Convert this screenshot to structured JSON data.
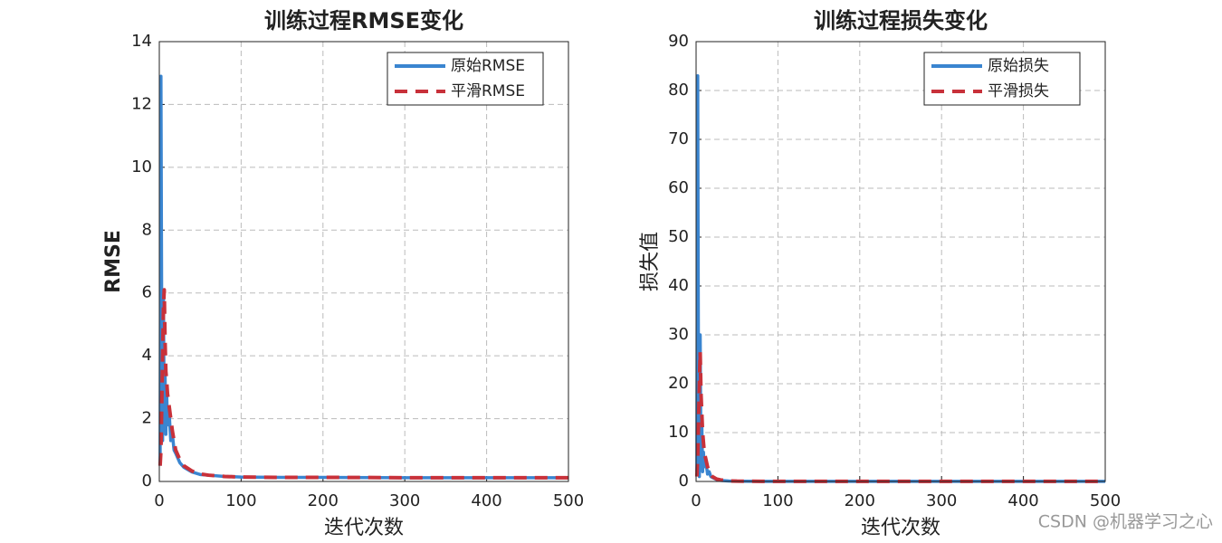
{
  "chart_data": [
    {
      "type": "line",
      "title": "训练过程RMSE变化",
      "xlabel": "迭代次数",
      "ylabel": "RMSE",
      "x": [
        1,
        2,
        3,
        4,
        5,
        6,
        7,
        8,
        9,
        10,
        12,
        14,
        16,
        18,
        20,
        25,
        30,
        40,
        50,
        60,
        80,
        100,
        150,
        200,
        300,
        400,
        500
      ],
      "series": [
        {
          "name": "原始RMSE",
          "color": "#3a85d0",
          "style": "solid",
          "values": [
            0.5,
            12.9,
            4.5,
            1.3,
            6.0,
            2.0,
            3.5,
            1.5,
            2.8,
            1.8,
            2.2,
            1.3,
            1.5,
            1.0,
            0.9,
            0.6,
            0.45,
            0.3,
            0.22,
            0.2,
            0.16,
            0.14,
            0.13,
            0.13,
            0.12,
            0.12,
            0.12
          ]
        },
        {
          "name": "平滑RMSE",
          "color": "#c8313a",
          "style": "dashed",
          "values": [
            0.5,
            1.0,
            2.5,
            4.0,
            5.5,
            6.1,
            4.5,
            3.5,
            3.2,
            2.8,
            2.4,
            2.0,
            1.6,
            1.3,
            1.0,
            0.7,
            0.5,
            0.33,
            0.24,
            0.2,
            0.16,
            0.14,
            0.13,
            0.13,
            0.12,
            0.12,
            0.12
          ]
        }
      ],
      "xlim": [
        0,
        500
      ],
      "ylim": [
        0,
        14
      ],
      "xticks": [
        0,
        100,
        200,
        300,
        400,
        500
      ],
      "yticks": [
        0,
        2,
        4,
        6,
        8,
        10,
        12,
        14
      ],
      "grid": true,
      "legend": "upper-right"
    },
    {
      "type": "line",
      "title": "训练过程损失变化",
      "xlabel": "迭代次数",
      "ylabel": "损失值",
      "x": [
        1,
        2,
        3,
        4,
        5,
        6,
        7,
        8,
        9,
        10,
        12,
        14,
        16,
        18,
        20,
        25,
        30,
        40,
        50,
        60,
        80,
        100,
        150,
        200,
        300,
        400,
        500
      ],
      "series": [
        {
          "name": "原始损失",
          "color": "#3a85d0",
          "style": "solid",
          "values": [
            2,
            83,
            15,
            1,
            30,
            3,
            12,
            2,
            6,
            3,
            4,
            1.5,
            2,
            1,
            0.8,
            0.4,
            0.2,
            0.1,
            0.05,
            0.04,
            0.03,
            0.02,
            0.02,
            0.02,
            0.02,
            0.02,
            0.02
          ]
        },
        {
          "name": "平滑损失",
          "color": "#c8313a",
          "style": "dashed",
          "values": [
            1,
            5,
            12,
            20,
            26.5,
            18,
            14,
            10,
            8,
            6,
            4.5,
            3,
            2,
            1.5,
            1,
            0.5,
            0.3,
            0.12,
            0.06,
            0.04,
            0.03,
            0.02,
            0.02,
            0.02,
            0.02,
            0.02,
            0.02
          ]
        }
      ],
      "xlim": [
        0,
        500
      ],
      "ylim": [
        0,
        90
      ],
      "xticks": [
        0,
        100,
        200,
        300,
        400,
        500
      ],
      "yticks": [
        0,
        10,
        20,
        30,
        40,
        50,
        60,
        70,
        80,
        90
      ],
      "grid": true,
      "legend": "upper-right"
    }
  ],
  "watermark": "CSDN @机器学习之心"
}
